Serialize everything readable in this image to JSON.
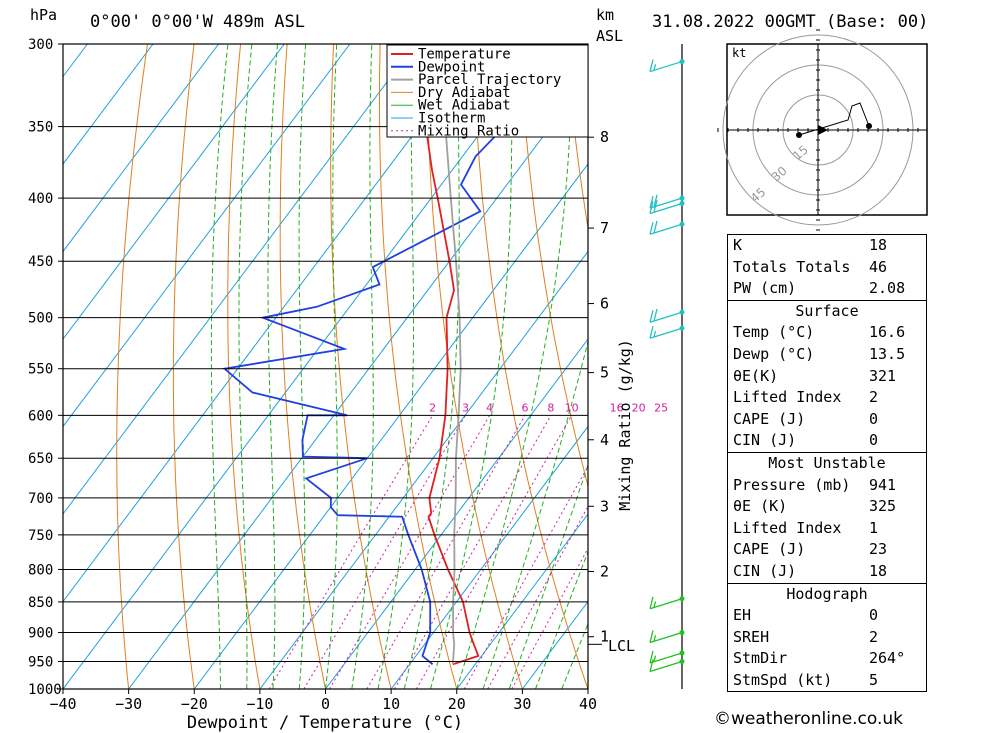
{
  "header": {
    "pressure_unit": "hPa",
    "location": "0°00' 0°00'W 489m ASL",
    "height_unit_km": "km",
    "height_unit_asl": "ASL",
    "datetime": "31.08.2022 00GMT (Base: 00)"
  },
  "colors": {
    "temperature": "#e02020",
    "dewpoint": "#2040e0",
    "parcel": "#a0a0a0",
    "dry_adiabat": "#e08020",
    "wet_adiabat": "#20b020",
    "isotherm": "#20a0e0",
    "mixing_ratio": "#d020a0",
    "wind": "#20c0c0",
    "wind_low": "#20c020"
  },
  "legend": [
    "Temperature",
    "Dewpoint",
    "Parcel Trajectory",
    "Dry Adiabat",
    "Wet Adiabat",
    "Isotherm",
    "Mixing Ratio"
  ],
  "chart_data": {
    "type": "line",
    "title": "",
    "xlabel": "Dewpoint / Temperature (°C)",
    "ylabel": "hPa",
    "ylabel_right": "Mixing Ratio (g/kg)",
    "xlim": [
      -40,
      40
    ],
    "ylim": [
      1000,
      300
    ],
    "pressure_ticks": [
      300,
      350,
      400,
      450,
      500,
      550,
      600,
      650,
      700,
      750,
      800,
      850,
      900,
      950,
      1000
    ],
    "x_ticks": [
      -40,
      -30,
      -20,
      -10,
      0,
      10,
      20,
      30,
      40
    ],
    "x_tick_labels": [
      "−40",
      "−30",
      "−20",
      "−10",
      "0",
      "10",
      "20",
      "30",
      "40"
    ],
    "km_ticks": [
      {
        "label": "8",
        "p": 357
      },
      {
        "label": "7",
        "p": 423
      },
      {
        "label": "6",
        "p": 487
      },
      {
        "label": "5",
        "p": 554
      },
      {
        "label": "4",
        "p": 628
      },
      {
        "label": "3",
        "p": 711
      },
      {
        "label": "2",
        "p": 803
      },
      {
        "label": "1",
        "p": 907
      }
    ],
    "lcl_label": "LCL",
    "lcl_p": 920,
    "mixing_ratio_labels": [
      "2",
      "3",
      "4",
      "6",
      "8",
      "10",
      "16",
      "20",
      "25"
    ],
    "mixing_ratio_values": [
      2,
      3,
      4,
      6,
      8,
      10,
      16,
      20,
      25
    ],
    "series": [
      {
        "name": "Temperature",
        "points": [
          [
            955,
            16.6
          ],
          [
            940,
            19.5
          ],
          [
            920,
            17.5
          ],
          [
            900,
            15.5
          ],
          [
            850,
            11
          ],
          [
            800,
            5
          ],
          [
            750,
            -1
          ],
          [
            725,
            -4
          ],
          [
            720,
            -4
          ],
          [
            700,
            -6
          ],
          [
            650,
            -9
          ],
          [
            600,
            -13
          ],
          [
            550,
            -18
          ],
          [
            500,
            -24
          ],
          [
            475,
            -26
          ],
          [
            450,
            -30
          ],
          [
            400,
            -39
          ],
          [
            380,
            -43
          ],
          [
            350,
            -49
          ],
          [
            300,
            -59
          ]
        ]
      },
      {
        "name": "Dewpoint",
        "points": [
          [
            955,
            13.5
          ],
          [
            940,
            11
          ],
          [
            900,
            9.5
          ],
          [
            850,
            6
          ],
          [
            800,
            1
          ],
          [
            750,
            -5
          ],
          [
            725,
            -8
          ],
          [
            723,
            -18
          ],
          [
            712,
            -20
          ],
          [
            700,
            -21
          ],
          [
            675,
            -27
          ],
          [
            650,
            -20
          ],
          [
            648,
            -30
          ],
          [
            628,
            -32
          ],
          [
            600,
            -34
          ],
          [
            600,
            -28
          ],
          [
            575,
            -45
          ],
          [
            550,
            -52
          ],
          [
            530,
            -36
          ],
          [
            500,
            -52
          ],
          [
            490,
            -45
          ],
          [
            470,
            -38
          ],
          [
            455,
            -41
          ],
          [
            410,
            -31
          ],
          [
            390,
            -37
          ],
          [
            370,
            -38
          ],
          [
            350,
            -37
          ],
          [
            300,
            -48
          ]
        ]
      },
      {
        "name": "Parcel Trajectory",
        "points": [
          [
            955,
            16.6
          ],
          [
            920,
            14.5
          ],
          [
            900,
            13
          ],
          [
            850,
            9.5
          ],
          [
            800,
            6
          ],
          [
            750,
            2
          ],
          [
            700,
            -2
          ],
          [
            650,
            -6.5
          ],
          [
            600,
            -11
          ],
          [
            550,
            -16
          ],
          [
            500,
            -22
          ],
          [
            450,
            -29
          ],
          [
            400,
            -37
          ],
          [
            350,
            -46
          ],
          [
            310,
            -54
          ]
        ]
      }
    ],
    "wind_barbs": [
      {
        "p": 310,
        "speed_kt": 15
      },
      {
        "p": 400,
        "speed_kt": 20
      },
      {
        "p": 404,
        "speed_kt": 20
      },
      {
        "p": 420,
        "speed_kt": 20
      },
      {
        "p": 495,
        "speed_kt": 20
      },
      {
        "p": 510,
        "speed_kt": 15
      },
      {
        "p": 845,
        "speed_kt": 15
      },
      {
        "p": 900,
        "speed_kt": 15
      },
      {
        "p": 935,
        "speed_kt": 15
      },
      {
        "p": 950,
        "speed_kt": 10
      }
    ]
  },
  "hodograph": {
    "unit": "kt",
    "ring_labels": [
      "15",
      "30",
      "45"
    ]
  },
  "indices": [
    {
      "label": "K",
      "value": "18"
    },
    {
      "label": "Totals Totals",
      "value": "46"
    },
    {
      "label": "PW (cm)",
      "value": "2.08"
    }
  ],
  "surface": {
    "title": "Surface",
    "rows": [
      {
        "label": "Temp (°C)",
        "value": "16.6"
      },
      {
        "label": "Dewp (°C)",
        "value": "13.5"
      },
      {
        "label": "θE(K)",
        "value": "321"
      },
      {
        "label": "Lifted Index",
        "value": "2"
      },
      {
        "label": "CAPE (J)",
        "value": "0"
      },
      {
        "label": "CIN (J)",
        "value": "0"
      }
    ]
  },
  "most_unstable": {
    "title": "Most Unstable",
    "rows": [
      {
        "label": "Pressure (mb)",
        "value": "941"
      },
      {
        "label": "θE (K)",
        "value": "325"
      },
      {
        "label": "Lifted Index",
        "value": "1"
      },
      {
        "label": "CAPE (J)",
        "value": "23"
      },
      {
        "label": "CIN (J)",
        "value": "18"
      }
    ]
  },
  "hodograph_table": {
    "title": "Hodograph",
    "rows": [
      {
        "label": "EH",
        "value": "0"
      },
      {
        "label": "SREH",
        "value": "2"
      },
      {
        "label": "StmDir",
        "value": "264°"
      },
      {
        "label": "StmSpd (kt)",
        "value": "5"
      }
    ]
  },
  "credit": "©weatheronline.co.uk"
}
